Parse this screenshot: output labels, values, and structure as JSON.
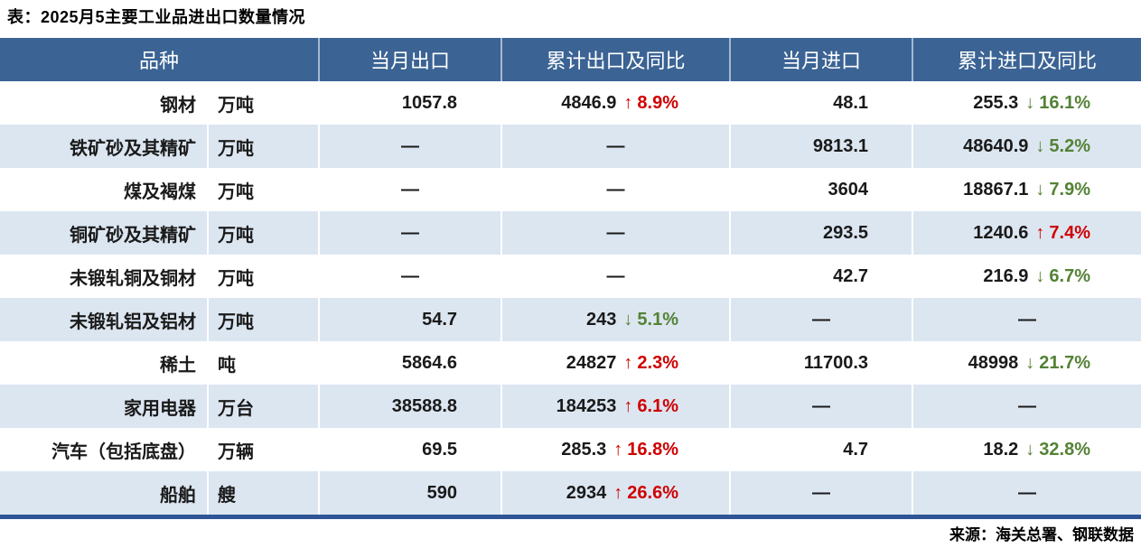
{
  "title": "表：2025月5主要工业品进出口数量情况",
  "source": "来源：海关总署、钢联数据",
  "colors": {
    "header_bg": "#3B6394",
    "alt_row_bg": "#DCE6F1",
    "up_red": "#CF0000",
    "down_green": "#548235",
    "bottom_border": "#2F5597"
  },
  "icons": {
    "up_arrow": "↑",
    "down_arrow": "↓",
    "empty_dash": "—"
  },
  "chart_data": {
    "type": "table",
    "title": "表：2025月5主要工业品进出口数量情况",
    "source": "来源：海关总署、钢联数据",
    "columns": [
      "品种",
      "当月出口",
      "累计出口及同比",
      "当月进口",
      "累计进口及同比"
    ],
    "rows": [
      {
        "name": "钢材",
        "unit": "万吨",
        "cur_export": "1057.8",
        "cum_export": {
          "value": "4846.9",
          "dir": "up",
          "pct": "8.9%"
        },
        "cur_import": "48.1",
        "cum_import": {
          "value": "255.3",
          "dir": "down",
          "pct": "16.1%"
        }
      },
      {
        "name": "铁矿砂及其精矿",
        "unit": "万吨",
        "cur_export": "—",
        "cum_export": "—",
        "cur_import": "9813.1",
        "cum_import": {
          "value": "48640.9",
          "dir": "down",
          "pct": "5.2%"
        }
      },
      {
        "name": "煤及褐煤",
        "unit": "万吨",
        "cur_export": "—",
        "cum_export": "—",
        "cur_import": "3604",
        "cum_import": {
          "value": "18867.1",
          "dir": "down",
          "pct": "7.9%"
        }
      },
      {
        "name": "铜矿砂及其精矿",
        "unit": "万吨",
        "cur_export": "—",
        "cum_export": "—",
        "cur_import": "293.5",
        "cum_import": {
          "value": "1240.6",
          "dir": "up",
          "pct": "7.4%"
        }
      },
      {
        "name": "未锻轧铜及铜材",
        "unit": "万吨",
        "cur_export": "—",
        "cum_export": "—",
        "cur_import": "42.7",
        "cum_import": {
          "value": "216.9",
          "dir": "down",
          "pct": "6.7%"
        }
      },
      {
        "name": "未锻轧铝及铝材",
        "unit": "万吨",
        "cur_export": "54.7",
        "cum_export": {
          "value": "243",
          "dir": "down",
          "pct": "5.1%"
        },
        "cur_import": "—",
        "cum_import": "—"
      },
      {
        "name": "稀土",
        "unit": "吨",
        "cur_export": "5864.6",
        "cum_export": {
          "value": "24827",
          "dir": "up",
          "pct": "2.3%"
        },
        "cur_import": "11700.3",
        "cum_import": {
          "value": "48998",
          "dir": "down",
          "pct": "21.7%"
        }
      },
      {
        "name": "家用电器",
        "unit": "万台",
        "cur_export": "38588.8",
        "cum_export": {
          "value": "184253",
          "dir": "up",
          "pct": "6.1%"
        },
        "cur_import": "—",
        "cum_import": "—"
      },
      {
        "name": "汽车（包括底盘）",
        "unit": "万辆",
        "cur_export": "69.5",
        "cum_export": {
          "value": "285.3",
          "dir": "up",
          "pct": "16.8%"
        },
        "cur_import": "4.7",
        "cum_import": {
          "value": "18.2",
          "dir": "down",
          "pct": "32.8%"
        }
      },
      {
        "name": "船舶",
        "unit": "艘",
        "cur_export": "590",
        "cum_export": {
          "value": "2934",
          "dir": "up",
          "pct": "26.6%"
        },
        "cur_import": "—",
        "cum_import": "—"
      }
    ]
  }
}
